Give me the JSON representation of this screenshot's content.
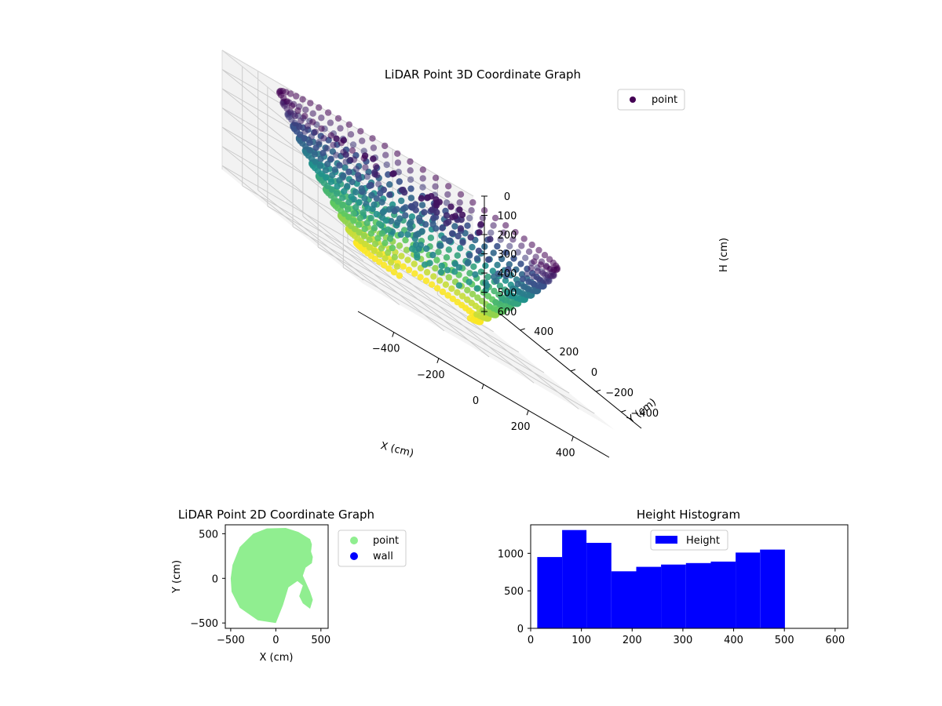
{
  "chart_data": [
    {
      "type": "scatter",
      "title": "LiDAR Point 3D Coordinate Graph",
      "xlabel": "X (cm)",
      "ylabel": "Y (cm)",
      "zlabel": "H (cm)",
      "legend": [
        "point"
      ],
      "legend_position": "top-right",
      "xlim": [
        -560,
        560
      ],
      "ylim": [
        -560,
        560
      ],
      "zlim": [
        0,
        620
      ],
      "z_inverted": true,
      "xticks": [
        "−400",
        "−200",
        "0",
        "200",
        "400"
      ],
      "yticks": [
        "−400",
        "−200",
        "0",
        "200",
        "400"
      ],
      "zticks": [
        "0",
        "100",
        "200",
        "300",
        "400",
        "500",
        "600"
      ],
      "colormap": [
        "#440154",
        "#3b528b",
        "#21918c",
        "#5ec962",
        "#fde725"
      ],
      "grid": true
    },
    {
      "type": "scatter",
      "title": "LiDAR Point 2D Coordinate Graph",
      "xlabel": "X (cm)",
      "ylabel": "Y (cm)",
      "xlim": [
        -560,
        580
      ],
      "ylim": [
        -560,
        600
      ],
      "xticks": [
        "−500",
        "0",
        "500"
      ],
      "yticks": [
        "−500",
        "0",
        "500"
      ],
      "legend_position": "right",
      "series": [
        {
          "name": "point",
          "color": "#90ee90"
        },
        {
          "name": "wall",
          "color": "#0000ff",
          "values": []
        }
      ],
      "outline_x": [
        110,
        250,
        380,
        400,
        390,
        410,
        400,
        330,
        300,
        380,
        410,
        380,
        300,
        260,
        300,
        240,
        140,
        80,
        0,
        -200,
        -400,
        -490,
        -500,
        -480,
        -400,
        -250,
        -100
      ],
      "outline_y": [
        565,
        520,
        440,
        380,
        300,
        240,
        170,
        120,
        30,
        -150,
        -240,
        -340,
        -280,
        -200,
        -80,
        -30,
        -100,
        -300,
        -500,
        -470,
        -330,
        -150,
        0,
        150,
        350,
        500,
        560
      ]
    },
    {
      "type": "bar",
      "title": "Height Histogram",
      "xlabel": "",
      "ylabel": "",
      "legend": [
        "Height"
      ],
      "legend_position": "upper center",
      "color": "#0000ff",
      "bin_edges": [
        13,
        62,
        110,
        159,
        208,
        257,
        306,
        355,
        404,
        452,
        501
      ],
      "values": [
        950,
        1310,
        1140,
        760,
        820,
        850,
        870,
        890,
        1010,
        1050
      ],
      "xlim": [
        0,
        625
      ],
      "ylim": [
        0,
        1380
      ],
      "xticks": [
        "0",
        "100",
        "200",
        "300",
        "400",
        "500",
        "600"
      ],
      "yticks": [
        "0",
        "500",
        "1000"
      ]
    }
  ]
}
